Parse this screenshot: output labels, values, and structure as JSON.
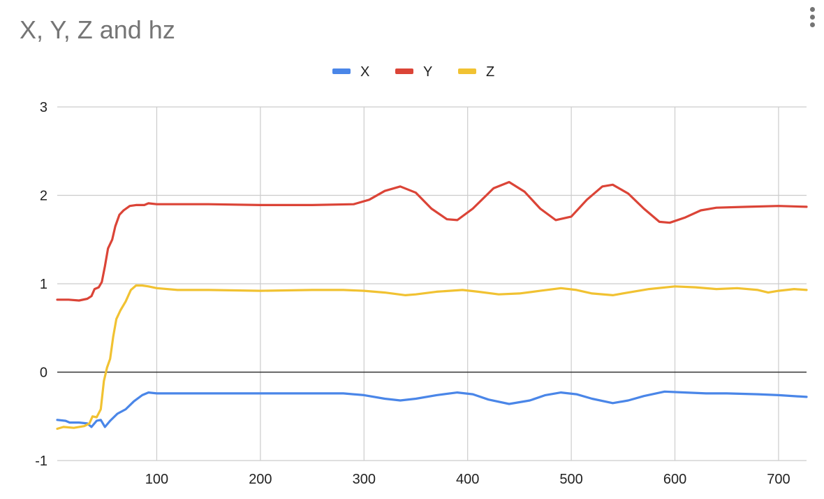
{
  "chart_data": {
    "type": "line",
    "title": "X, Y, Z and hz",
    "xlabel": "",
    "ylabel": "",
    "xlim": [
      4,
      727
    ],
    "ylim": [
      -1,
      3
    ],
    "x_ticks": [
      100,
      200,
      300,
      400,
      500,
      600,
      700
    ],
    "y_ticks": [
      -1,
      0,
      1,
      2,
      3
    ],
    "grid": true,
    "legend_position": "top-center",
    "series": [
      {
        "name": "X",
        "color": "#4a86e8",
        "points": [
          [
            4,
            -0.54
          ],
          [
            12,
            -0.55
          ],
          [
            16,
            -0.57
          ],
          [
            25,
            -0.57
          ],
          [
            33,
            -0.58
          ],
          [
            37,
            -0.62
          ],
          [
            42,
            -0.55
          ],
          [
            46,
            -0.54
          ],
          [
            50,
            -0.62
          ],
          [
            55,
            -0.55
          ],
          [
            62,
            -0.47
          ],
          [
            70,
            -0.42
          ],
          [
            78,
            -0.33
          ],
          [
            86,
            -0.26
          ],
          [
            92,
            -0.23
          ],
          [
            100,
            -0.24
          ],
          [
            120,
            -0.24
          ],
          [
            150,
            -0.24
          ],
          [
            200,
            -0.24
          ],
          [
            250,
            -0.24
          ],
          [
            280,
            -0.24
          ],
          [
            300,
            -0.26
          ],
          [
            320,
            -0.3
          ],
          [
            335,
            -0.32
          ],
          [
            350,
            -0.3
          ],
          [
            370,
            -0.26
          ],
          [
            390,
            -0.23
          ],
          [
            405,
            -0.25
          ],
          [
            420,
            -0.31
          ],
          [
            440,
            -0.36
          ],
          [
            460,
            -0.32
          ],
          [
            475,
            -0.26
          ],
          [
            490,
            -0.23
          ],
          [
            505,
            -0.25
          ],
          [
            520,
            -0.3
          ],
          [
            540,
            -0.35
          ],
          [
            555,
            -0.32
          ],
          [
            570,
            -0.27
          ],
          [
            590,
            -0.22
          ],
          [
            610,
            -0.23
          ],
          [
            630,
            -0.24
          ],
          [
            650,
            -0.24
          ],
          [
            680,
            -0.25
          ],
          [
            700,
            -0.26
          ],
          [
            727,
            -0.28
          ]
        ]
      },
      {
        "name": "Y",
        "color": "#db4437",
        "points": [
          [
            4,
            0.82
          ],
          [
            15,
            0.82
          ],
          [
            25,
            0.81
          ],
          [
            33,
            0.83
          ],
          [
            37,
            0.86
          ],
          [
            40,
            0.94
          ],
          [
            44,
            0.96
          ],
          [
            47,
            1.02
          ],
          [
            50,
            1.2
          ],
          [
            53,
            1.4
          ],
          [
            57,
            1.5
          ],
          [
            60,
            1.65
          ],
          [
            64,
            1.78
          ],
          [
            68,
            1.83
          ],
          [
            74,
            1.88
          ],
          [
            80,
            1.89
          ],
          [
            88,
            1.89
          ],
          [
            92,
            1.91
          ],
          [
            100,
            1.9
          ],
          [
            150,
            1.9
          ],
          [
            200,
            1.89
          ],
          [
            250,
            1.89
          ],
          [
            290,
            1.9
          ],
          [
            305,
            1.95
          ],
          [
            320,
            2.05
          ],
          [
            335,
            2.1
          ],
          [
            350,
            2.03
          ],
          [
            365,
            1.85
          ],
          [
            380,
            1.73
          ],
          [
            390,
            1.72
          ],
          [
            405,
            1.85
          ],
          [
            425,
            2.08
          ],
          [
            440,
            2.15
          ],
          [
            455,
            2.04
          ],
          [
            470,
            1.85
          ],
          [
            485,
            1.72
          ],
          [
            500,
            1.76
          ],
          [
            515,
            1.95
          ],
          [
            530,
            2.1
          ],
          [
            540,
            2.12
          ],
          [
            555,
            2.02
          ],
          [
            570,
            1.85
          ],
          [
            585,
            1.7
          ],
          [
            595,
            1.69
          ],
          [
            610,
            1.75
          ],
          [
            625,
            1.83
          ],
          [
            640,
            1.86
          ],
          [
            670,
            1.87
          ],
          [
            700,
            1.88
          ],
          [
            727,
            1.87
          ]
        ]
      },
      {
        "name": "Z",
        "color": "#f1c232",
        "points": [
          [
            4,
            -0.64
          ],
          [
            10,
            -0.62
          ],
          [
            20,
            -0.63
          ],
          [
            30,
            -0.61
          ],
          [
            35,
            -0.58
          ],
          [
            38,
            -0.5
          ],
          [
            42,
            -0.51
          ],
          [
            46,
            -0.42
          ],
          [
            49,
            -0.1
          ],
          [
            52,
            0.05
          ],
          [
            55,
            0.15
          ],
          [
            58,
            0.4
          ],
          [
            61,
            0.6
          ],
          [
            65,
            0.7
          ],
          [
            70,
            0.8
          ],
          [
            75,
            0.93
          ],
          [
            80,
            0.98
          ],
          [
            86,
            0.98
          ],
          [
            92,
            0.97
          ],
          [
            100,
            0.95
          ],
          [
            120,
            0.93
          ],
          [
            150,
            0.93
          ],
          [
            200,
            0.92
          ],
          [
            250,
            0.93
          ],
          [
            280,
            0.93
          ],
          [
            300,
            0.92
          ],
          [
            320,
            0.9
          ],
          [
            340,
            0.87
          ],
          [
            350,
            0.88
          ],
          [
            370,
            0.91
          ],
          [
            395,
            0.93
          ],
          [
            410,
            0.91
          ],
          [
            430,
            0.88
          ],
          [
            450,
            0.89
          ],
          [
            470,
            0.92
          ],
          [
            490,
            0.95
          ],
          [
            505,
            0.93
          ],
          [
            520,
            0.89
          ],
          [
            540,
            0.87
          ],
          [
            555,
            0.9
          ],
          [
            575,
            0.94
          ],
          [
            600,
            0.97
          ],
          [
            620,
            0.96
          ],
          [
            640,
            0.94
          ],
          [
            660,
            0.95
          ],
          [
            680,
            0.93
          ],
          [
            690,
            0.9
          ],
          [
            700,
            0.92
          ],
          [
            715,
            0.94
          ],
          [
            727,
            0.93
          ]
        ]
      }
    ]
  }
}
